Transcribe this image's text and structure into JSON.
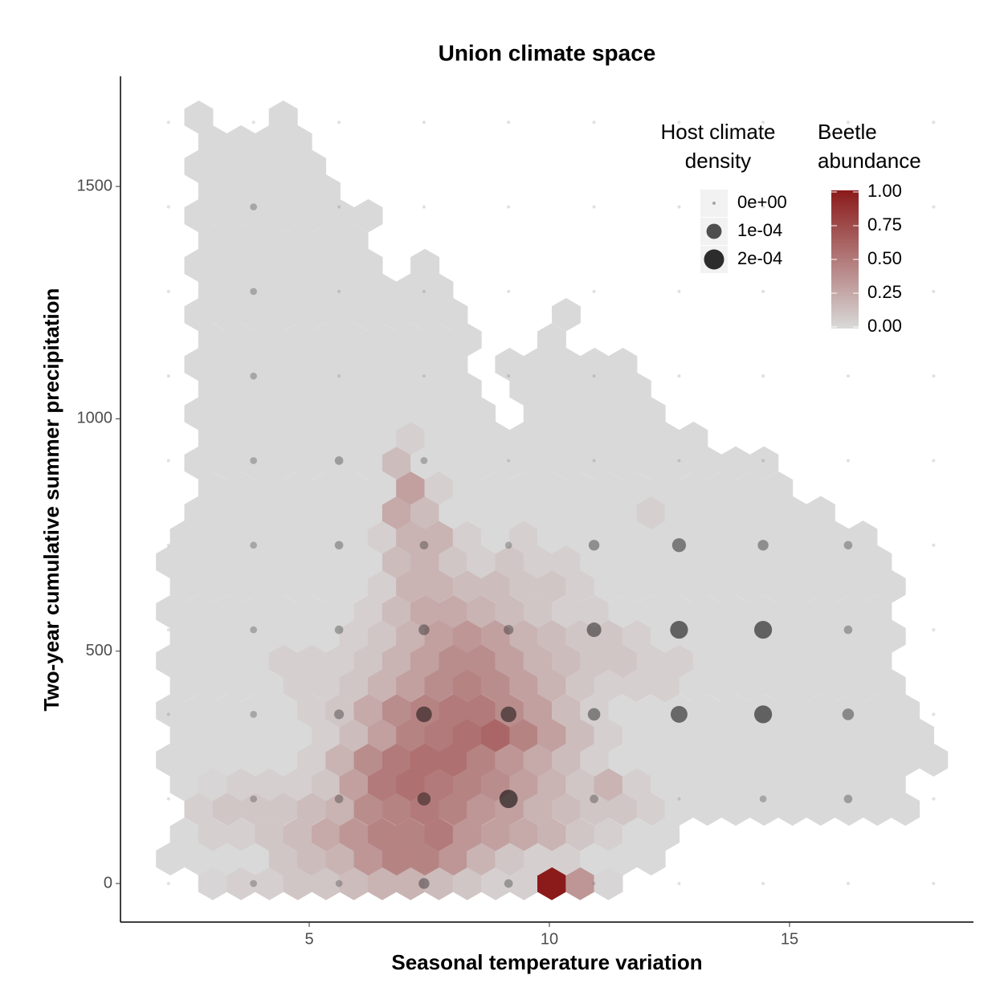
{
  "chart_data": {
    "type": "hexbin",
    "title": "Union climate space",
    "x_label": "Seasonal temperature variation",
    "y_label": "Two-year cumulative summer precipitation",
    "xlim": [
      1.07,
      18.83
    ],
    "ylim": [
      -83,
      1737
    ],
    "xticks": [
      5,
      10,
      15
    ],
    "yticks": [
      0,
      500,
      1000,
      1500
    ],
    "grid": false,
    "low_color": "#d9d9d9",
    "high_color": "#8b1a1a",
    "hex_centers": {
      "even": [
        2.4,
        2.99,
        3.58,
        4.17,
        4.76,
        5.35,
        5.93,
        6.52,
        7.11,
        7.7,
        8.29,
        8.88,
        9.47,
        10.05,
        10.64,
        11.23,
        11.82,
        12.41,
        13.0,
        13.59,
        14.18,
        14.77,
        15.35,
        15.94,
        16.53,
        17.12,
        17.71,
        18.3
      ],
      "odd": [
        2.11,
        2.7,
        3.29,
        3.88,
        4.46,
        5.05,
        5.64,
        6.23,
        6.82,
        7.41,
        8.0,
        8.58,
        9.17,
        9.76,
        10.35,
        10.94,
        11.53,
        12.12,
        12.7,
        13.29,
        13.88,
        14.47,
        15.06,
        15.65,
        16.24,
        16.83,
        17.41,
        18.0
      ]
    },
    "rows": [
      {
        "y": 0,
        "values": [
          null,
          0.02,
          0.05,
          0.05,
          0.1,
          0.1,
          0.15,
          0.2,
          0.2,
          0.15,
          0.1,
          0.05,
          0.05,
          1,
          0.35,
          0.02,
          null,
          null,
          null,
          null,
          null,
          null,
          null,
          null,
          null,
          null,
          null,
          null
        ]
      },
      {
        "y": 53,
        "values": [
          0,
          0,
          0,
          0,
          0.1,
          0.15,
          0.2,
          0.35,
          0.45,
          0.45,
          0.35,
          0.2,
          0.1,
          0.05,
          0.05,
          0,
          0,
          0,
          null,
          null,
          null,
          null,
          null,
          null,
          null,
          null,
          null,
          null
        ]
      },
      {
        "y": 106,
        "values": [
          0,
          0.05,
          0.05,
          0.1,
          0.15,
          0.25,
          0.35,
          0.45,
          0.45,
          0.5,
          0.35,
          0.3,
          0.25,
          0.2,
          0.1,
          0.05,
          0,
          0,
          null,
          null,
          null,
          null,
          null,
          null,
          null,
          null,
          null,
          null
        ]
      },
      {
        "y": 160,
        "values": [
          null,
          0.05,
          0.1,
          0.1,
          0.1,
          0.15,
          0.2,
          0.4,
          0.45,
          0.5,
          0.45,
          0.35,
          0.3,
          0.2,
          0.15,
          0.1,
          0.1,
          0.05,
          0,
          0,
          0,
          0,
          0,
          0,
          0,
          0,
          0,
          null
        ]
      },
      {
        "y": 213,
        "values": [
          0,
          0.02,
          0.05,
          0.05,
          0.05,
          0.1,
          0.3,
          0.5,
          0.55,
          0.5,
          0.45,
          0.4,
          0.3,
          0.2,
          0.1,
          0.2,
          0.05,
          0,
          0,
          0,
          0,
          0,
          0,
          0,
          0,
          0,
          null,
          null
        ]
      },
      {
        "y": 266,
        "values": [
          0,
          0,
          0,
          0,
          0,
          0.05,
          0.2,
          0.4,
          0.5,
          0.55,
          0.55,
          0.45,
          0.35,
          0.25,
          0.15,
          0.05,
          0,
          0,
          0,
          0,
          0,
          0,
          0,
          0,
          0,
          0,
          0,
          0
        ]
      },
      {
        "y": 319,
        "values": [
          0,
          0,
          0,
          0,
          0,
          0.05,
          0.15,
          0.3,
          0.45,
          0.5,
          0.55,
          0.6,
          0.45,
          0.3,
          0.15,
          0.05,
          0,
          0,
          0,
          0,
          0,
          0,
          0,
          0,
          0,
          0,
          0,
          null
        ]
      },
      {
        "y": 372,
        "values": [
          0,
          0,
          0,
          0,
          0,
          0.05,
          0.1,
          0.25,
          0.4,
          0.45,
          0.5,
          0.5,
          0.4,
          0.3,
          0.15,
          0.05,
          0,
          0,
          0,
          0,
          0,
          0,
          0,
          0,
          0,
          0,
          0,
          null
        ]
      },
      {
        "y": 426,
        "values": [
          0,
          0,
          0,
          0,
          0.05,
          0.05,
          0.1,
          0.2,
          0.3,
          0.4,
          0.45,
          0.4,
          0.3,
          0.2,
          0.1,
          0.05,
          0.05,
          0.05,
          0,
          0,
          0,
          0,
          0,
          0,
          0,
          0,
          null,
          null
        ]
      },
      {
        "y": 479,
        "values": [
          0,
          0,
          0,
          0,
          0.05,
          0.05,
          0.05,
          0.1,
          0.2,
          0.3,
          0.4,
          0.4,
          0.3,
          0.2,
          0.15,
          0.1,
          0.1,
          0.05,
          0.05,
          0,
          0,
          0,
          0,
          0,
          0,
          0,
          null,
          null
        ]
      },
      {
        "y": 532,
        "values": [
          0,
          0,
          0,
          0,
          0,
          0,
          0.05,
          0.1,
          0.2,
          0.3,
          0.35,
          0.3,
          0.2,
          0.15,
          0.1,
          0.1,
          0.05,
          0,
          0,
          0,
          0,
          0,
          0,
          0,
          0,
          0,
          null,
          null
        ]
      },
      {
        "y": 585,
        "values": [
          0,
          0,
          0,
          0,
          0,
          0,
          0,
          0.05,
          0.15,
          0.25,
          0.25,
          0.2,
          0.15,
          0.1,
          0.05,
          0.05,
          0,
          0,
          0,
          0,
          0,
          0,
          0,
          0,
          0,
          0,
          null,
          null
        ]
      },
      {
        "y": 639,
        "values": [
          0,
          0,
          0,
          0,
          0,
          0,
          0,
          0.05,
          0.2,
          0.2,
          0.15,
          0.15,
          0.1,
          0.1,
          0.05,
          0,
          0,
          0,
          0,
          0,
          0,
          0,
          0,
          0,
          0,
          0,
          null,
          null
        ]
      },
      {
        "y": 692,
        "values": [
          0,
          0,
          0,
          0,
          0,
          0,
          0,
          0,
          0.15,
          0.2,
          0.1,
          0.05,
          0.1,
          0.05,
          0.05,
          0,
          0,
          0,
          0,
          0,
          0,
          0,
          0,
          0,
          0,
          0,
          null,
          null
        ]
      },
      {
        "y": 745,
        "values": [
          0,
          0,
          0,
          0,
          0,
          0,
          0,
          0.05,
          0.2,
          0.2,
          0.05,
          0,
          0.05,
          0,
          0,
          0,
          0,
          0,
          0,
          0,
          0,
          0,
          0,
          0,
          0,
          null,
          null,
          null
        ]
      },
      {
        "y": 798,
        "values": [
          null,
          0,
          0,
          0,
          0,
          0,
          0,
          0,
          0.25,
          0.15,
          0,
          0,
          0,
          0,
          0,
          0,
          0,
          0.05,
          0,
          0,
          0,
          0,
          0,
          0,
          null,
          null,
          null,
          null
        ]
      },
      {
        "y": 851,
        "values": [
          null,
          0,
          0,
          0,
          0,
          0,
          0,
          0,
          0.3,
          0.05,
          0,
          0,
          0,
          0,
          0,
          0,
          0,
          0,
          0,
          0,
          0,
          0,
          null,
          null,
          null,
          null,
          null,
          null
        ]
      },
      {
        "y": 905,
        "values": [
          null,
          0,
          0,
          0,
          0,
          0,
          0,
          0,
          0.15,
          0,
          0,
          0,
          0,
          0,
          0,
          0,
          0,
          0,
          0,
          0,
          0,
          0,
          null,
          null,
          null,
          null,
          null,
          null
        ]
      },
      {
        "y": 958,
        "values": [
          null,
          0,
          0,
          0,
          0,
          0,
          0,
          0,
          0.05,
          0,
          0,
          0,
          0,
          0,
          0,
          0,
          0,
          0,
          0,
          null,
          null,
          null,
          null,
          null,
          null,
          null,
          null,
          null
        ]
      },
      {
        "y": 1011,
        "values": [
          null,
          0,
          0,
          0,
          0,
          0,
          0,
          0,
          0,
          0,
          0,
          0,
          null,
          0,
          0,
          0,
          0,
          0,
          null,
          null,
          null,
          null,
          null,
          null,
          null,
          null,
          null,
          null
        ]
      },
      {
        "y": 1064,
        "values": [
          null,
          0,
          0,
          0,
          0,
          0,
          0,
          0,
          0,
          0,
          0,
          null,
          0,
          0,
          0,
          0,
          0,
          null,
          null,
          null,
          null,
          null,
          null,
          null,
          null,
          null,
          null,
          null
        ]
      },
      {
        "y": 1117,
        "values": [
          null,
          0,
          0,
          0,
          0,
          0,
          0,
          0,
          0,
          0,
          0,
          null,
          0,
          0,
          0,
          0,
          0,
          null,
          null,
          null,
          null,
          null,
          null,
          null,
          null,
          null,
          null,
          null
        ]
      },
      {
        "y": 1170,
        "values": [
          null,
          0,
          0,
          0,
          0,
          0,
          0,
          0,
          0,
          0,
          0,
          null,
          null,
          0,
          null,
          null,
          null,
          null,
          null,
          null,
          null,
          null,
          null,
          null,
          null,
          null,
          null,
          null
        ]
      },
      {
        "y": 1224,
        "values": [
          null,
          0,
          0,
          0,
          0,
          0,
          0,
          0,
          0,
          0,
          0,
          null,
          null,
          null,
          0,
          null,
          null,
          null,
          null,
          null,
          null,
          null,
          null,
          null,
          null,
          null,
          null,
          null
        ]
      },
      {
        "y": 1277,
        "values": [
          null,
          0,
          0,
          0,
          0,
          0,
          0,
          0,
          0,
          0,
          null,
          null,
          null,
          null,
          null,
          null,
          null,
          null,
          null,
          null,
          null,
          null,
          null,
          null,
          null,
          null,
          null,
          null
        ]
      },
      {
        "y": 1330,
        "values": [
          null,
          0,
          0,
          0,
          0,
          0,
          0,
          0,
          null,
          0,
          null,
          null,
          null,
          null,
          null,
          null,
          null,
          null,
          null,
          null,
          null,
          null,
          null,
          null,
          null,
          null,
          null,
          null
        ]
      },
      {
        "y": 1383,
        "values": [
          null,
          0,
          0,
          0,
          0,
          0,
          0,
          null,
          null,
          null,
          null,
          null,
          null,
          null,
          null,
          null,
          null,
          null,
          null,
          null,
          null,
          null,
          null,
          null,
          null,
          null,
          null,
          null
        ]
      },
      {
        "y": 1437,
        "values": [
          null,
          0,
          0,
          0,
          0,
          0,
          0,
          0,
          null,
          null,
          null,
          null,
          null,
          null,
          null,
          null,
          null,
          null,
          null,
          null,
          null,
          null,
          null,
          null,
          null,
          null,
          null,
          null
        ]
      },
      {
        "y": 1490,
        "values": [
          null,
          0,
          0,
          0,
          0,
          0,
          null,
          null,
          null,
          null,
          null,
          null,
          null,
          null,
          null,
          null,
          null,
          null,
          null,
          null,
          null,
          null,
          null,
          null,
          null,
          null,
          null,
          null
        ]
      },
      {
        "y": 1543,
        "values": [
          null,
          0,
          0,
          0,
          0,
          0,
          null,
          null,
          null,
          null,
          null,
          null,
          null,
          null,
          null,
          null,
          null,
          null,
          null,
          null,
          null,
          null,
          null,
          null,
          null,
          null,
          null,
          null
        ]
      },
      {
        "y": 1596,
        "values": [
          null,
          0,
          0,
          0,
          0,
          null,
          null,
          null,
          null,
          null,
          null,
          null,
          null,
          null,
          null,
          null,
          null,
          null,
          null,
          null,
          null,
          null,
          null,
          null,
          null,
          null,
          null,
          null
        ]
      },
      {
        "y": 1649,
        "values": [
          null,
          0,
          null,
          null,
          0,
          null,
          null,
          null,
          null,
          null,
          null,
          null,
          null,
          null,
          null,
          null,
          null,
          null,
          null,
          null,
          null,
          null,
          null,
          null,
          null,
          null,
          null,
          null
        ]
      }
    ],
    "density": {
      "x": [
        2.07,
        3.84,
        5.62,
        7.39,
        9.15,
        10.93,
        12.7,
        14.45,
        16.22,
        18.0
      ],
      "y": [
        0,
        182,
        364,
        546,
        728,
        910,
        1092,
        1274,
        1456,
        1638
      ],
      "values": [
        [
          0,
          1e-05,
          1e-05,
          4e-05,
          2e-05,
          0,
          0,
          0,
          0,
          0
        ],
        [
          0,
          1e-05,
          2e-05,
          7e-05,
          0.00016,
          2e-05,
          0,
          1e-05,
          2e-05,
          0
        ],
        [
          0,
          1e-05,
          3e-05,
          0.00011,
          0.00011,
          6e-05,
          0.00013,
          0.00015,
          5e-05,
          0
        ],
        [
          0,
          1e-05,
          2e-05,
          4e-05,
          3e-05,
          9e-05,
          0.00015,
          0.00015,
          2e-05,
          0
        ],
        [
          0,
          1e-05,
          2e-05,
          2e-05,
          1e-05,
          4e-05,
          8e-05,
          4e-05,
          2e-05,
          0
        ],
        [
          0,
          1e-05,
          2e-05,
          1e-05,
          0,
          0,
          0,
          0,
          0,
          0
        ],
        [
          0,
          1e-05,
          0,
          0,
          0,
          0,
          0,
          0,
          0,
          0
        ],
        [
          0,
          1e-05,
          0,
          0,
          0,
          0,
          0,
          0,
          0,
          0
        ],
        [
          0,
          1e-05,
          0,
          0,
          0,
          0,
          0,
          0,
          0,
          0
        ],
        [
          0,
          0,
          0,
          0,
          0,
          0,
          0,
          0,
          0,
          0
        ]
      ]
    },
    "size_legend": {
      "title": [
        "Host climate",
        "density"
      ],
      "entries": [
        {
          "value": 0,
          "label": "0e+00"
        },
        {
          "value": 0.0001,
          "label": "1e-04"
        },
        {
          "value": 0.0002,
          "label": "2e-04"
        }
      ]
    },
    "color_legend": {
      "title": [
        "Beetle",
        "abundance"
      ],
      "ticks": [
        {
          "value": 0,
          "label": "0.00"
        },
        {
          "value": 0.25,
          "label": "0.25"
        },
        {
          "value": 0.5,
          "label": "0.50"
        },
        {
          "value": 0.75,
          "label": "0.75"
        },
        {
          "value": 1,
          "label": "1.00"
        }
      ]
    }
  }
}
